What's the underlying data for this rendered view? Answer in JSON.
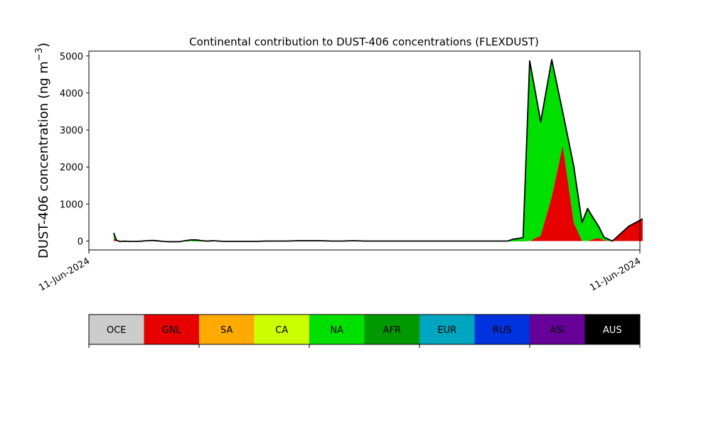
{
  "chart_data": {
    "type": "area",
    "title": "Continental contribution to DUST-406 concentrations (FLEXDUST)",
    "ylabel": "DUST-406 concentration (ng m⁻³)",
    "ylabel_main": "DUST-406 concentration (ng m",
    "ylabel_sup": "−3",
    "ylabel_close": ")",
    "xlabel": "",
    "xlim": [
      0,
      100
    ],
    "ylim": [
      -240,
      5130
    ],
    "yticks": [
      0,
      1000,
      2000,
      3000,
      4000,
      5000
    ],
    "xtick_labels": [
      "11-Jun-2024",
      "11-Jun-2024"
    ],
    "grid": false,
    "x": [
      4.5,
      5.0,
      5.6,
      6.5,
      7.5,
      8.5,
      9.5,
      10.5,
      11.5,
      12.5,
      13.5,
      14.5,
      15.5,
      16.5,
      17.5,
      18.5,
      19.5,
      20.5,
      21.5,
      22.5,
      23.5,
      24.5,
      25.5,
      26.5,
      27.5,
      28.5,
      29.5,
      30.5,
      32.0,
      34.0,
      36.0,
      38.0,
      40.0,
      42.0,
      44.0,
      46.0,
      48.0,
      50.0,
      52.0,
      54.0,
      56.0,
      58.0,
      60.0,
      62.0,
      64.0,
      66.0,
      68.0,
      70.0,
      72.0,
      74.0,
      76.0,
      77.0,
      78.0,
      78.8,
      80.0,
      82.0,
      84.0,
      86.0,
      88.0,
      89.5,
      90.5,
      91.5,
      92.5,
      93.5,
      95.0,
      96.5,
      98.0,
      100.5
    ],
    "series": [
      {
        "key": "OCE",
        "color": "#cccccc",
        "values": [
          0,
          0,
          0,
          0,
          0,
          0,
          0,
          0,
          0,
          0,
          0,
          0,
          0,
          0,
          0,
          0,
          0,
          0,
          0,
          0,
          0,
          0,
          0,
          0,
          0,
          0,
          0,
          0,
          0,
          0,
          0,
          0,
          0,
          0,
          0,
          0,
          0,
          0,
          0,
          0,
          0,
          0,
          0,
          0,
          0,
          0,
          0,
          0,
          0,
          0,
          0,
          0,
          0,
          0,
          0,
          0,
          0,
          0,
          0,
          0,
          0,
          0,
          0,
          0,
          0,
          0,
          0,
          0
        ]
      },
      {
        "key": "GNL",
        "color": "#e60000",
        "values": [
          60,
          20,
          -10,
          -5,
          -10,
          -10,
          -5,
          10,
          15,
          5,
          -10,
          -20,
          -20,
          -15,
          -10,
          0,
          -10,
          -10,
          -20,
          -10,
          -10,
          -10,
          -10,
          -10,
          -10,
          -10,
          -10,
          -10,
          -10,
          -10,
          -10,
          -10,
          -10,
          -10,
          -10,
          -10,
          -10,
          -10,
          -10,
          -10,
          -10,
          -10,
          -10,
          -10,
          -10,
          -10,
          -10,
          -10,
          -10,
          -10,
          -10,
          -10,
          -10,
          -5,
          0,
          150,
          1200,
          2580,
          500,
          0,
          0,
          50,
          80,
          20,
          0,
          200,
          400,
          600
        ]
      },
      {
        "key": "SA",
        "color": "#ffaa00",
        "values": [
          0,
          0,
          0,
          0,
          0,
          0,
          0,
          0,
          0,
          0,
          0,
          0,
          0,
          0,
          0,
          0,
          0,
          0,
          0,
          0,
          0,
          0,
          0,
          0,
          0,
          0,
          0,
          0,
          0,
          0,
          0,
          0,
          0,
          0,
          0,
          0,
          0,
          0,
          0,
          0,
          0,
          0,
          0,
          0,
          0,
          0,
          0,
          0,
          0,
          0,
          0,
          0,
          0,
          0,
          0,
          0,
          0,
          0,
          0,
          0,
          0,
          0,
          0,
          0,
          0,
          0,
          0,
          0
        ]
      },
      {
        "key": "CA",
        "color": "#ccff00",
        "values": [
          0,
          0,
          0,
          0,
          0,
          0,
          0,
          0,
          0,
          0,
          0,
          0,
          0,
          0,
          0,
          0,
          0,
          0,
          0,
          0,
          0,
          0,
          0,
          0,
          0,
          0,
          0,
          0,
          0,
          0,
          0,
          0,
          0,
          0,
          0,
          0,
          0,
          0,
          0,
          0,
          0,
          0,
          0,
          0,
          0,
          0,
          0,
          0,
          0,
          0,
          0,
          0,
          0,
          0,
          0,
          0,
          0,
          0,
          0,
          0,
          0,
          0,
          0,
          0,
          0,
          0,
          0,
          0
        ]
      },
      {
        "key": "NA",
        "color": "#00e000",
        "values": [
          160,
          0,
          0,
          0,
          0,
          0,
          0,
          0,
          0,
          0,
          0,
          0,
          0,
          0,
          20,
          30,
          40,
          20,
          20,
          20,
          10,
          0,
          0,
          0,
          0,
          0,
          0,
          0,
          10,
          10,
          10,
          20,
          20,
          20,
          10,
          10,
          20,
          10,
          10,
          10,
          10,
          10,
          10,
          10,
          10,
          10,
          10,
          10,
          10,
          10,
          10,
          60,
          80,
          100,
          4870,
          3070,
          3700,
          900,
          1520,
          500,
          880,
          580,
          320,
          80,
          0,
          0,
          0,
          0
        ]
      },
      {
        "key": "AFR",
        "color": "#009900",
        "values": [
          0,
          0,
          0,
          0,
          0,
          0,
          0,
          0,
          0,
          0,
          0,
          0,
          0,
          0,
          0,
          0,
          0,
          0,
          0,
          0,
          0,
          0,
          0,
          0,
          0,
          0,
          0,
          0,
          0,
          0,
          0,
          0,
          0,
          0,
          0,
          0,
          0,
          0,
          0,
          0,
          0,
          0,
          0,
          0,
          0,
          0,
          0,
          0,
          0,
          0,
          0,
          0,
          0,
          0,
          0,
          0,
          0,
          0,
          0,
          0,
          0,
          0,
          0,
          0,
          0,
          0,
          0,
          0
        ]
      },
      {
        "key": "EUR",
        "color": "#00a6bf",
        "values": [
          0,
          0,
          0,
          0,
          0,
          0,
          0,
          0,
          0,
          0,
          0,
          0,
          0,
          0,
          0,
          0,
          0,
          0,
          0,
          0,
          0,
          0,
          0,
          0,
          0,
          0,
          0,
          0,
          0,
          0,
          0,
          0,
          0,
          0,
          0,
          0,
          0,
          0,
          0,
          0,
          0,
          0,
          0,
          0,
          0,
          0,
          0,
          0,
          0,
          0,
          0,
          0,
          0,
          0,
          0,
          0,
          0,
          0,
          0,
          0,
          0,
          0,
          0,
          0,
          0,
          0,
          0,
          0
        ]
      },
      {
        "key": "RUS",
        "color": "#0033dd",
        "values": [
          0,
          0,
          0,
          0,
          0,
          0,
          0,
          0,
          0,
          0,
          0,
          0,
          0,
          0,
          0,
          0,
          0,
          0,
          0,
          0,
          0,
          0,
          0,
          0,
          0,
          0,
          0,
          0,
          0,
          0,
          0,
          0,
          0,
          0,
          0,
          0,
          0,
          0,
          0,
          0,
          0,
          0,
          0,
          0,
          0,
          0,
          0,
          0,
          0,
          0,
          0,
          0,
          0,
          0,
          0,
          0,
          0,
          0,
          0,
          0,
          0,
          0,
          0,
          0,
          0,
          0,
          0,
          0
        ]
      },
      {
        "key": "ASI",
        "color": "#660099",
        "values": [
          0,
          0,
          0,
          0,
          0,
          0,
          0,
          0,
          0,
          0,
          0,
          0,
          0,
          0,
          0,
          0,
          0,
          0,
          0,
          0,
          0,
          0,
          0,
          0,
          0,
          0,
          0,
          0,
          0,
          0,
          0,
          0,
          0,
          0,
          0,
          0,
          0,
          0,
          0,
          0,
          0,
          0,
          0,
          0,
          0,
          0,
          0,
          0,
          0,
          0,
          0,
          0,
          0,
          0,
          0,
          0,
          0,
          0,
          0,
          0,
          0,
          0,
          0,
          0,
          0,
          0,
          0,
          0
        ]
      },
      {
        "key": "AUS",
        "color": "#000000",
        "values": [
          0,
          0,
          0,
          0,
          0,
          0,
          0,
          0,
          0,
          0,
          0,
          0,
          0,
          0,
          0,
          0,
          0,
          0,
          0,
          0,
          0,
          0,
          0,
          0,
          0,
          0,
          0,
          0,
          0,
          0,
          0,
          0,
          0,
          0,
          0,
          0,
          0,
          0,
          0,
          0,
          0,
          0,
          0,
          0,
          0,
          0,
          0,
          0,
          0,
          0,
          0,
          0,
          0,
          0,
          0,
          0,
          0,
          0,
          0,
          0,
          0,
          0,
          0,
          0,
          0,
          0,
          0,
          0
        ]
      }
    ],
    "legend": {
      "placement": "bottom color bar",
      "entries": [
        {
          "label": "OCE",
          "color": "#cccccc",
          "text_color": "#000000"
        },
        {
          "label": "GNL",
          "color": "#e60000",
          "text_color": "#000000"
        },
        {
          "label": "SA",
          "color": "#ffaa00",
          "text_color": "#000000"
        },
        {
          "label": "CA",
          "color": "#ccff00",
          "text_color": "#000000"
        },
        {
          "label": "NA",
          "color": "#00e000",
          "text_color": "#000000"
        },
        {
          "label": "AFR",
          "color": "#009900",
          "text_color": "#000000"
        },
        {
          "label": "EUR",
          "color": "#00a6bf",
          "text_color": "#000000"
        },
        {
          "label": "RUS",
          "color": "#0033dd",
          "text_color": "#000000"
        },
        {
          "label": "ASI",
          "color": "#660099",
          "text_color": "#000000"
        },
        {
          "label": "AUS",
          "color": "#000000",
          "text_color": "#ffffff"
        }
      ]
    },
    "total_line_color": "#000000"
  }
}
